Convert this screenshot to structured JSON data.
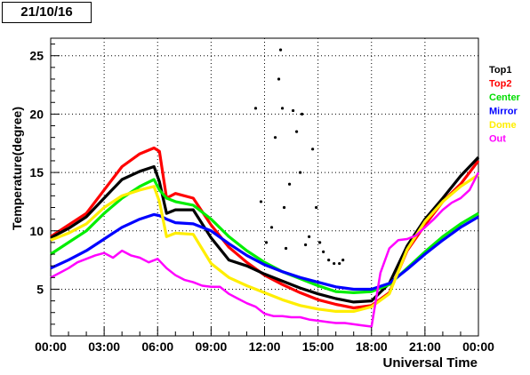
{
  "date_label": "21/10/16",
  "chart_data": {
    "type": "scatter",
    "title": "",
    "xlabel": "Universal Time",
    "ylabel": "Temperature(degree)",
    "xlim": [
      0,
      24
    ],
    "ylim": [
      1,
      26.5
    ],
    "x_ticks": [
      {
        "v": 0,
        "label": "00:00"
      },
      {
        "v": 3,
        "label": "03:00"
      },
      {
        "v": 6,
        "label": "06:00"
      },
      {
        "v": 9,
        "label": "09:00"
      },
      {
        "v": 12,
        "label": "12:00"
      },
      {
        "v": 15,
        "label": "15:00"
      },
      {
        "v": 18,
        "label": "18:00"
      },
      {
        "v": 21,
        "label": "21:00"
      },
      {
        "v": 24,
        "label": "00:00"
      }
    ],
    "y_ticks": [
      {
        "v": 5,
        "label": "5"
      },
      {
        "v": 10,
        "label": "10"
      },
      {
        "v": 15,
        "label": "15"
      },
      {
        "v": 20,
        "label": "20"
      },
      {
        "v": 25,
        "label": "25"
      }
    ],
    "grid": true,
    "legend_position": "right",
    "series": [
      {
        "name": "Top2",
        "color": "#ff0000",
        "x": [
          0,
          1,
          2,
          3,
          4,
          5,
          5.8,
          6.1,
          6.5,
          7,
          8,
          9,
          10,
          11,
          12,
          13,
          14,
          15,
          16,
          17,
          18,
          19,
          20,
          21,
          22,
          23,
          24
        ],
        "y": [
          9.5,
          10.5,
          11.5,
          13.5,
          15.5,
          16.6,
          17.1,
          16.8,
          12.8,
          13.2,
          12.8,
          10.5,
          8.6,
          7.3,
          6.2,
          5.4,
          4.7,
          4.1,
          3.7,
          3.4,
          3.6,
          4.7,
          8.3,
          10.5,
          12.5,
          14.0,
          16.0
        ]
      },
      {
        "name": "Top1",
        "color": "#000000",
        "x": [
          0,
          1,
          2,
          3,
          4,
          5,
          5.8,
          6.1,
          6.5,
          7,
          8,
          9,
          10,
          11,
          12,
          13,
          14,
          15,
          16,
          17,
          18,
          19,
          20,
          21,
          22,
          23,
          24
        ],
        "y": [
          9.4,
          10.2,
          11.2,
          12.8,
          14.4,
          15.1,
          15.5,
          14.2,
          11.5,
          11.8,
          11.8,
          9.4,
          7.5,
          7.0,
          6.3,
          5.7,
          5.1,
          4.6,
          4.2,
          3.9,
          4.0,
          5.5,
          8.7,
          11.0,
          12.8,
          14.7,
          16.3
        ]
      },
      {
        "name": "Center",
        "color": "#00ee00",
        "x": [
          0,
          1,
          2,
          3,
          4,
          5,
          5.8,
          6.1,
          6.5,
          7,
          8,
          9,
          10,
          11,
          12,
          13,
          14,
          15,
          16,
          17,
          18,
          19,
          20,
          21,
          22,
          23,
          24
        ],
        "y": [
          8.0,
          9.0,
          10.0,
          11.5,
          12.8,
          13.8,
          14.4,
          13.5,
          12.8,
          12.5,
          12.2,
          11.0,
          9.5,
          8.3,
          7.3,
          6.5,
          5.9,
          5.3,
          4.8,
          4.7,
          4.8,
          5.4,
          6.8,
          8.2,
          9.5,
          10.6,
          11.5
        ]
      },
      {
        "name": "Mirror",
        "color": "#0000ff",
        "x": [
          0,
          1,
          2,
          3,
          4,
          5,
          5.8,
          6.1,
          6.5,
          7,
          8,
          9,
          10,
          11,
          12,
          13,
          14,
          15,
          16,
          17,
          18,
          19,
          20,
          21,
          22,
          23,
          24
        ],
        "y": [
          6.8,
          7.5,
          8.3,
          9.3,
          10.3,
          11.0,
          11.4,
          11.3,
          11.0,
          10.7,
          10.6,
          10.0,
          8.9,
          7.9,
          7.1,
          6.5,
          6.0,
          5.6,
          5.2,
          5.0,
          5.0,
          5.5,
          6.7,
          8.0,
          9.2,
          10.3,
          11.2
        ]
      },
      {
        "name": "Dome",
        "color": "#ffee00",
        "x": [
          0,
          1,
          2,
          3,
          4,
          5,
          5.8,
          6.1,
          6.5,
          7,
          8,
          9,
          10,
          11,
          12,
          13,
          14,
          15,
          16,
          17,
          18,
          19,
          20,
          21,
          22,
          23,
          24
        ],
        "y": [
          9.2,
          9.8,
          10.6,
          12.0,
          13.0,
          13.5,
          13.8,
          12.5,
          9.5,
          9.8,
          9.7,
          7.2,
          6.0,
          5.3,
          4.7,
          4.1,
          3.6,
          3.3,
          3.1,
          3.1,
          3.5,
          4.6,
          8.4,
          10.8,
          12.5,
          13.8,
          14.8
        ]
      },
      {
        "name": "Out",
        "color": "#ff00ff",
        "x": [
          0,
          0.5,
          1,
          1.5,
          2,
          2.5,
          3,
          3.5,
          4,
          4.5,
          5,
          5.5,
          6,
          6.5,
          7,
          7.5,
          8,
          8.5,
          9,
          9.5,
          10,
          10.5,
          11,
          11.5,
          12,
          12.5,
          13,
          13.5,
          14,
          14.5,
          15,
          15.5,
          16,
          16.5,
          17,
          17.5,
          18,
          18.5,
          19,
          19.5,
          20,
          20.5,
          21,
          21.5,
          22,
          22.5,
          23,
          23.5,
          24
        ],
        "y": [
          6.0,
          6.4,
          6.8,
          7.3,
          7.6,
          7.9,
          8.1,
          7.7,
          8.3,
          7.9,
          7.7,
          7.3,
          7.6,
          6.8,
          6.2,
          5.8,
          5.6,
          5.3,
          5.2,
          5.2,
          4.6,
          4.2,
          3.8,
          3.5,
          2.9,
          2.7,
          2.7,
          2.6,
          2.6,
          2.4,
          2.3,
          2.2,
          2.1,
          2.1,
          2.0,
          1.9,
          1.8,
          6.4,
          8.5,
          9.2,
          9.3,
          9.6,
          10.3,
          11.0,
          11.8,
          12.4,
          12.8,
          13.5,
          15.0
        ]
      },
      {
        "name": "Top1-dots",
        "color": "#000000",
        "x": [
          11.5,
          11.8,
          12.1,
          12.4,
          12.6,
          12.8,
          12.9,
          13.0,
          13.1,
          13.2,
          13.4,
          13.6,
          13.8,
          14.0,
          14.1,
          14.3,
          14.5,
          14.7,
          14.9,
          15.1,
          15.3,
          15.6,
          15.9,
          16.2,
          16.4
        ],
        "y": [
          20.5,
          12.5,
          9.0,
          10.3,
          18.0,
          23.0,
          25.5,
          20.5,
          12.0,
          8.5,
          14.0,
          20.3,
          18.5,
          15.0,
          20.0,
          8.8,
          9.5,
          17.0,
          12.0,
          9.0,
          8.2,
          7.5,
          7.2,
          7.2,
          7.5
        ]
      }
    ],
    "legend": [
      {
        "label": "Top1",
        "color": "#000000"
      },
      {
        "label": "Top2",
        "color": "#ff0000"
      },
      {
        "label": "Center",
        "color": "#00dd00"
      },
      {
        "label": "Mirror",
        "color": "#0000ff"
      },
      {
        "label": "Dome",
        "color": "#ffee00"
      },
      {
        "label": "Out",
        "color": "#ff00ff"
      }
    ]
  }
}
